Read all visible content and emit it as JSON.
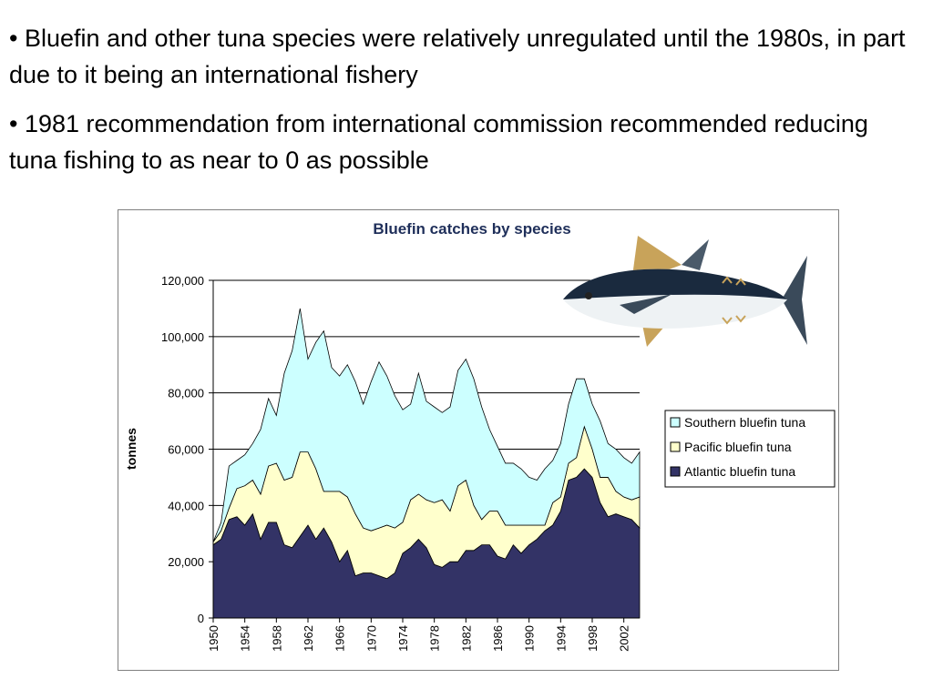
{
  "slide": {
    "bullets": [
      "• Bluefin and other tuna species were relatively unregulated until the 1980s, in part due to it being an international fishery",
      "• 1981 recommendation from international commission recommended reducing tuna fishing to as near to 0 as possible"
    ]
  },
  "chart_data": {
    "type": "area",
    "stacked": true,
    "title": "Bluefin catches by species",
    "xlabel": "",
    "ylabel": "tonnes",
    "ylim": [
      0,
      120000
    ],
    "yticks": [
      0,
      20000,
      40000,
      60000,
      80000,
      100000,
      120000
    ],
    "ytick_labels": [
      "0",
      "20,000",
      "40,000",
      "60,000",
      "80,000",
      "100,000",
      "120,000"
    ],
    "xtick_labels": [
      "1950",
      "1954",
      "1958",
      "1962",
      "1966",
      "1970",
      "1974",
      "1978",
      "1982",
      "1986",
      "1990",
      "1994",
      "1998",
      "2002"
    ],
    "grid": "horizontal",
    "legend_position": "right",
    "x": [
      1950,
      1951,
      1952,
      1953,
      1954,
      1955,
      1956,
      1957,
      1958,
      1959,
      1960,
      1961,
      1962,
      1963,
      1964,
      1965,
      1966,
      1967,
      1968,
      1969,
      1970,
      1971,
      1972,
      1973,
      1974,
      1975,
      1976,
      1977,
      1978,
      1979,
      1980,
      1981,
      1982,
      1983,
      1984,
      1985,
      1986,
      1987,
      1988,
      1989,
      1990,
      1991,
      1992,
      1993,
      1994,
      1995,
      1996,
      1997,
      1998,
      1999,
      2000,
      2001,
      2002,
      2003,
      2004
    ],
    "series": [
      {
        "name": "Atlantic bluefin tuna",
        "color": "#333366",
        "values": [
          26000,
          28000,
          35000,
          36000,
          33000,
          37000,
          28000,
          34000,
          34000,
          26000,
          25000,
          29000,
          33000,
          28000,
          32000,
          27000,
          20000,
          24000,
          15000,
          16000,
          16000,
          15000,
          14000,
          16000,
          23000,
          25000,
          28000,
          25000,
          19000,
          18000,
          20000,
          20000,
          24000,
          24000,
          26000,
          26000,
          22000,
          21000,
          26000,
          23000,
          26000,
          28000,
          31000,
          33000,
          38000,
          49000,
          50000,
          53000,
          50000,
          41000,
          36000,
          37000,
          36000,
          35000,
          32000
        ]
      },
      {
        "name": "Pacific bluefin tuna",
        "color": "#ffffcc",
        "values": [
          1000,
          3000,
          4000,
          10000,
          14000,
          12000,
          16000,
          20000,
          21000,
          23000,
          25000,
          30000,
          26000,
          25000,
          13000,
          18000,
          25000,
          19000,
          22000,
          16000,
          15000,
          17000,
          19000,
          16000,
          11000,
          17000,
          16000,
          17000,
          22000,
          24000,
          18000,
          27000,
          25000,
          16000,
          9000,
          12000,
          16000,
          12000,
          7000,
          10000,
          7000,
          5000,
          2000,
          8000,
          5000,
          6000,
          7000,
          15000,
          10000,
          9000,
          14000,
          8000,
          7000,
          7000,
          11000
        ]
      },
      {
        "name": "Southern bluefin tuna",
        "color": "#ccffff",
        "values": [
          0,
          3000,
          15000,
          10000,
          11000,
          13000,
          23000,
          24000,
          17000,
          38000,
          45000,
          51000,
          33000,
          45000,
          57000,
          44000,
          41000,
          47000,
          47000,
          44000,
          53000,
          59000,
          53000,
          47000,
          40000,
          34000,
          43000,
          35000,
          34000,
          31000,
          37000,
          41000,
          43000,
          45000,
          40000,
          29000,
          23000,
          22000,
          22000,
          20000,
          17000,
          16000,
          20000,
          15000,
          19000,
          21000,
          28000,
          17000,
          16000,
          20000,
          12000,
          15000,
          14000,
          13000,
          16000
        ]
      }
    ]
  },
  "legend": {
    "items": [
      {
        "label": "Southern bluefin tuna",
        "color": "#ccffff"
      },
      {
        "label": "Pacific bluefin tuna",
        "color": "#ffffcc"
      },
      {
        "label": "Atlantic bluefin tuna",
        "color": "#333366"
      }
    ]
  },
  "illustration": {
    "icon": "bluefin-tuna-fish-icon",
    "colors": {
      "back": "#1a2a3e",
      "belly": "#eef2f4",
      "fin": "#c8a35a"
    }
  }
}
